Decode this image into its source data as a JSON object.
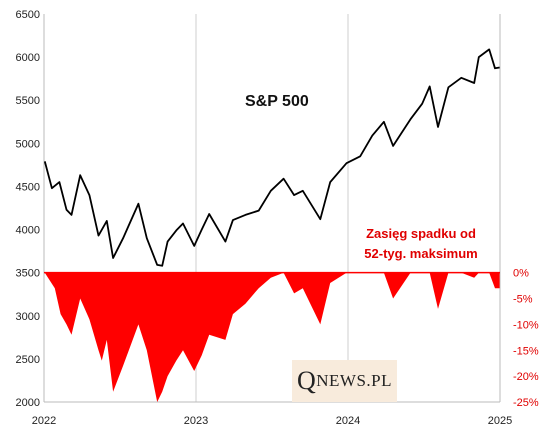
{
  "chart_data": {
    "type": "line",
    "title": "S&P 500",
    "annotation": [
      "Zasięg spadku od",
      "52-tyg. maksimum"
    ],
    "x_ticks": [
      "2022",
      "2023",
      "2024",
      "2025"
    ],
    "y_left_ticks": [
      "6500",
      "6000",
      "5500",
      "5000",
      "4500",
      "4000",
      "3500",
      "3000",
      "2500",
      "2000"
    ],
    "y_right_ticks": [
      "0%",
      "-5%",
      "-10%",
      "-15%",
      "-20%",
      "-25%"
    ],
    "ylim_left": [
      2000,
      6500
    ],
    "ylim_right": [
      -25,
      0
    ],
    "xlim": [
      "2022-01-01",
      "2025-01-01"
    ],
    "grid": "vertical lines at years",
    "series": [
      {
        "name": "S&P 500",
        "color": "#000000",
        "x": [
          "2022-01-03",
          "2022-01-20",
          "2022-02-07",
          "2022-02-24",
          "2022-03-08",
          "2022-03-29",
          "2022-04-20",
          "2022-05-12",
          "2022-06-01",
          "2022-06-16",
          "2022-07-10",
          "2022-08-16",
          "2022-09-05",
          "2022-09-30",
          "2022-10-12",
          "2022-10-25",
          "2022-11-15",
          "2022-12-01",
          "2022-12-28",
          "2023-01-15",
          "2023-02-02",
          "2023-03-13",
          "2023-03-31",
          "2023-04-30",
          "2023-06-01",
          "2023-06-30",
          "2023-07-31",
          "2023-08-25",
          "2023-09-15",
          "2023-10-27",
          "2023-11-20",
          "2023-12-29",
          "2024-01-31",
          "2024-02-29",
          "2024-03-28",
          "2024-04-19",
          "2024-05-31",
          "2024-06-28",
          "2024-07-16",
          "2024-08-05",
          "2024-08-30",
          "2024-09-30",
          "2024-10-31",
          "2024-11-11",
          "2024-12-06",
          "2024-12-20",
          "2024-12-31"
        ],
        "y": [
          4790,
          4480,
          4550,
          4230,
          4170,
          4630,
          4400,
          3930,
          4100,
          3670,
          3900,
          4300,
          3900,
          3590,
          3580,
          3860,
          3990,
          4070,
          3810,
          4000,
          4180,
          3860,
          4110,
          4170,
          4220,
          4450,
          4590,
          4400,
          4450,
          4120,
          4550,
          4770,
          4850,
          5090,
          5250,
          4970,
          5280,
          5460,
          5660,
          5190,
          5650,
          5760,
          5700,
          6000,
          6090,
          5870,
          5880
        ]
      }
    ],
    "drawdown": {
      "name": "Zasięg spadku od 52-tyg. maksimum",
      "color": "#ff0000",
      "x": [
        "2022-01-03",
        "2022-01-27",
        "2022-02-10",
        "2022-02-24",
        "2022-03-08",
        "2022-03-29",
        "2022-04-20",
        "2022-05-12",
        "2022-05-20",
        "2022-06-01",
        "2022-06-16",
        "2022-07-10",
        "2022-08-16",
        "2022-09-05",
        "2022-09-30",
        "2022-10-12",
        "2022-10-25",
        "2022-11-15",
        "2022-12-01",
        "2022-12-28",
        "2023-01-15",
        "2023-02-02",
        "2023-03-13",
        "2023-03-31",
        "2023-04-30",
        "2023-06-01",
        "2023-06-30",
        "2023-07-31",
        "2023-08-25",
        "2023-09-15",
        "2023-10-27",
        "2023-11-20",
        "2023-12-29",
        "2024-01-31",
        "2024-02-29",
        "2024-03-28",
        "2024-04-19",
        "2024-05-31",
        "2024-06-28",
        "2024-07-16",
        "2024-08-05",
        "2024-08-30",
        "2024-09-30",
        "2024-10-31",
        "2024-11-11",
        "2024-12-06",
        "2024-12-20",
        "2024-12-31"
      ],
      "y": [
        0,
        -3,
        -8,
        -10,
        -12,
        -5,
        -9,
        -15,
        -17,
        -13,
        -23,
        -18,
        -10,
        -15,
        -25,
        -23,
        -20,
        -17,
        -15,
        -19,
        -16,
        -12,
        -13,
        -8,
        -6,
        -3,
        -1,
        0,
        -4,
        -3,
        -10,
        -2,
        0,
        0,
        0,
        0,
        -5,
        0,
        0,
        0,
        -7,
        0,
        0,
        -1,
        0,
        0,
        -3,
        -3
      ]
    }
  },
  "watermark": {
    "text_big": "Q",
    "text_small": "NEWS.PL"
  }
}
